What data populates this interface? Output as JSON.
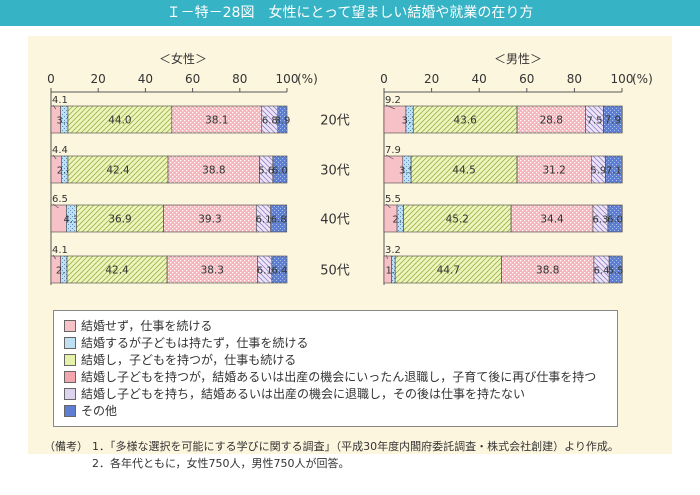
{
  "title": "Ｉ－特－28図　女性にとって望ましい結婚や就業の在り方",
  "chart_data": {
    "type": "bar",
    "orientation": "horizontal",
    "stacked": true,
    "unit_label": "(%)",
    "ticks": [
      "0",
      "20",
      "40",
      "60",
      "80",
      "100"
    ],
    "xlim": [
      0,
      100
    ],
    "categories": [
      "20代",
      "30代",
      "40代",
      "50代"
    ],
    "colors": [
      "#f7c1c8",
      "#bfe0f2",
      "#e6f0a8",
      "#f4a6ae",
      "#ded3ef",
      "#5e7fd1"
    ],
    "panels": [
      {
        "title": "＜女性＞",
        "series": [
          {
            "name": "結婚せず，仕事を続ける",
            "values": [
              4.1,
              4.4,
              6.5,
              4.1
            ]
          },
          {
            "name": "結婚するが子どもは持たず，仕事を続ける",
            "values": [
              3.1,
              2.8,
              4.3,
              2.7
            ]
          },
          {
            "name": "結婚し，子どもを持つが，仕事も続ける",
            "values": [
              44.0,
              42.4,
              36.9,
              42.4
            ]
          },
          {
            "name": "結婚し子どもを持つが，結婚あるいは出産の機会にいったん退職し，子育て後に再び仕事を持つ",
            "values": [
              38.1,
              38.8,
              39.3,
              38.3
            ]
          },
          {
            "name": "結婚し子どもを持ち，結婚あるいは出産の機会に退職し，その後は仕事を持たない",
            "values": [
              6.8,
              5.6,
              6.1,
              6.1
            ]
          },
          {
            "name": "その他",
            "values": [
              3.9,
              6.0,
              6.8,
              6.4
            ]
          }
        ]
      },
      {
        "title": "＜男性＞",
        "series": [
          {
            "name": "結婚せず，仕事を続ける",
            "values": [
              9.2,
              7.9,
              5.5,
              3.2
            ]
          },
          {
            "name": "結婚するが子どもは持たず，仕事を続ける",
            "values": [
              3.1,
              3.5,
              2.7,
              1.5
            ]
          },
          {
            "name": "結婚し，子どもを持つが，仕事も続ける",
            "values": [
              43.6,
              44.5,
              45.2,
              44.7
            ]
          },
          {
            "name": "結婚し子どもを持つが，結婚あるいは出産の機会にいったん退職し，子育て後に再び仕事を持つ",
            "values": [
              28.8,
              31.2,
              34.4,
              38.8
            ]
          },
          {
            "name": "結婚し子どもを持ち，結婚あるいは出産の機会に退職し，その後は仕事を持たない",
            "values": [
              7.5,
              5.9,
              6.3,
              6.4
            ]
          },
          {
            "name": "その他",
            "values": [
              7.9,
              7.1,
              6.0,
              5.5
            ]
          }
        ]
      }
    ]
  },
  "legend": [
    "結婚せず，仕事を続ける",
    "結婚するが子どもは持たず，仕事を続ける",
    "結婚し，子どもを持つが，仕事も続ける",
    "結婚し子どもを持つが，結婚あるいは出産の機会にいったん退職し，子育て後に再び仕事を持つ",
    "結婚し子どもを持ち，結婚あるいは出産の機会に退職し，その後は仕事を持たない",
    "その他"
  ],
  "notes": {
    "prefix": "（備考）",
    "items": [
      "1．「多様な選択を可能にする学びに関する調査」（平成30年度内閣府委託調査・株式会社創建）より作成。",
      "2．各年代ともに，女性750人，男性750人が回答。"
    ]
  }
}
